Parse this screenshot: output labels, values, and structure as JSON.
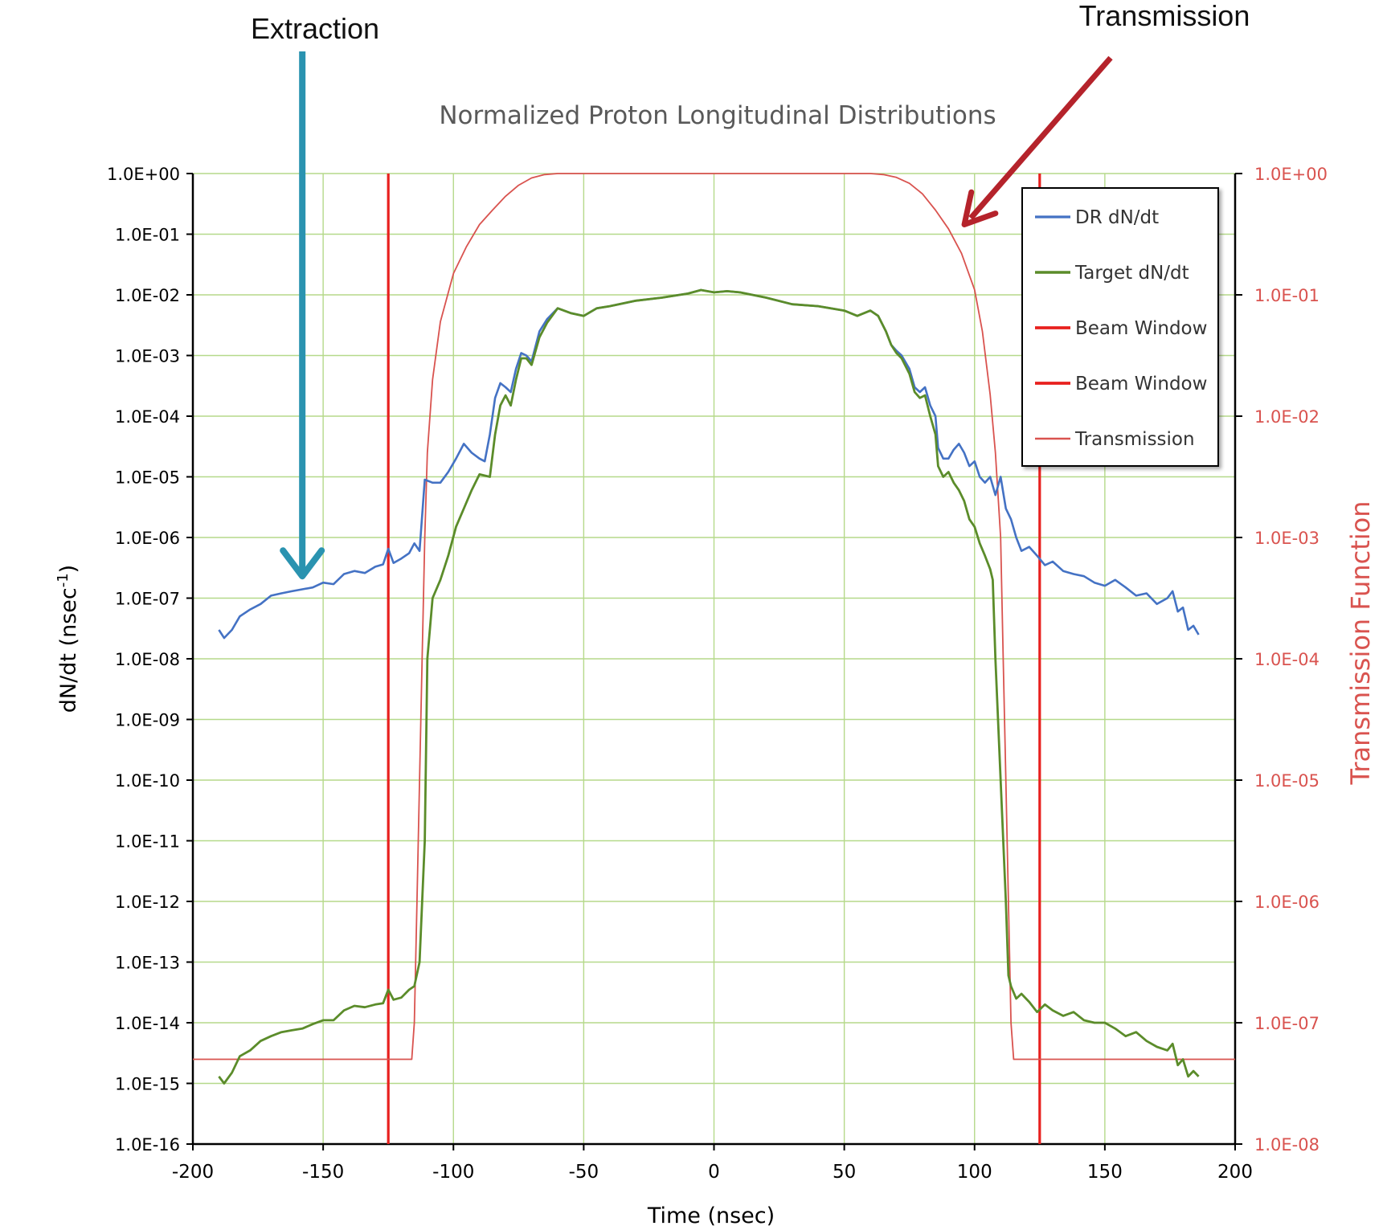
{
  "chart_data": {
    "type": "line",
    "title": "Normalized Proton Longitudinal Distributions",
    "xlabel": "Time (nsec)",
    "ylabel_left": "dN/dt (nsec",
    "ylabel_left_sup": "-1",
    "ylabel_left_close": ")",
    "ylabel_right": "Transmission Function",
    "xlim": [
      -200,
      200
    ],
    "x_ticks": [
      -200,
      -150,
      -100,
      -50,
      0,
      50,
      100,
      150,
      200
    ],
    "y_left_scale": "log",
    "y_left_lim": [
      1e-16,
      1
    ],
    "y_left_ticks": [
      "1.0E+00",
      "1.0E-01",
      "1.0E-02",
      "1.0E-03",
      "1.0E-04",
      "1.0E-05",
      "1.0E-06",
      "1.0E-07",
      "1.0E-08",
      "1.0E-09",
      "1.0E-10",
      "1.0E-11",
      "1.0E-12",
      "1.0E-13",
      "1.0E-14",
      "1.0E-15",
      "1.0E-16"
    ],
    "y_right_scale": "log",
    "y_right_lim": [
      1e-08,
      1
    ],
    "y_right_ticks": [
      "1.0E+00",
      "1.0E-01",
      "1.0E-02",
      "1.0E-03",
      "1.0E-04",
      "1.0E-05",
      "1.0E-06",
      "1.0E-07",
      "1.0E-08"
    ],
    "grid": true,
    "legend_position": "top-right",
    "colors": {
      "dr": "#4472C4",
      "target": "#5B8C2A",
      "beam_window": "#E8201E",
      "transmission": "#D9534F",
      "grid": "#B5D98A",
      "extraction_arrow": "#2A93B0",
      "transmission_arrow": "#B5232B"
    },
    "series": [
      {
        "name": "DR dN/dt",
        "axis": "left",
        "points": [
          [
            -190,
            3e-08
          ],
          [
            -188,
            2.2e-08
          ],
          [
            -185,
            3e-08
          ],
          [
            -182,
            5e-08
          ],
          [
            -178,
            6.5e-08
          ],
          [
            -174,
            8e-08
          ],
          [
            -170,
            1.1e-07
          ],
          [
            -166,
            1.2e-07
          ],
          [
            -162,
            1.3e-07
          ],
          [
            -158,
            1.4e-07
          ],
          [
            -154,
            1.5e-07
          ],
          [
            -150,
            1.8e-07
          ],
          [
            -146,
            1.7e-07
          ],
          [
            -142,
            2.5e-07
          ],
          [
            -138,
            2.8e-07
          ],
          [
            -134,
            2.6e-07
          ],
          [
            -130,
            3.3e-07
          ],
          [
            -127,
            3.6e-07
          ],
          [
            -125,
            6.5e-07
          ],
          [
            -123,
            3.8e-07
          ],
          [
            -120,
            4.5e-07
          ],
          [
            -117,
            5.5e-07
          ],
          [
            -115,
            8e-07
          ],
          [
            -113,
            6e-07
          ],
          [
            -111,
            9e-06
          ],
          [
            -108,
            8e-06
          ],
          [
            -105,
            8e-06
          ],
          [
            -102,
            1.2e-05
          ],
          [
            -99,
            2e-05
          ],
          [
            -96,
            3.5e-05
          ],
          [
            -93,
            2.5e-05
          ],
          [
            -90,
            2e-05
          ],
          [
            -88,
            1.8e-05
          ],
          [
            -86,
            5e-05
          ],
          [
            -84,
            0.0002
          ],
          [
            -82,
            0.00035
          ],
          [
            -80,
            0.0003
          ],
          [
            -78,
            0.00025
          ],
          [
            -76,
            0.0006
          ],
          [
            -74,
            0.0011
          ],
          [
            -72,
            0.001
          ],
          [
            -70,
            0.0008
          ],
          [
            -67,
            0.0025
          ],
          [
            -64,
            0.004
          ],
          [
            -60,
            0.006
          ],
          [
            -55,
            0.005
          ],
          [
            -50,
            0.0045
          ],
          [
            -45,
            0.006
          ],
          [
            -40,
            0.0065
          ],
          [
            -30,
            0.008
          ],
          [
            -20,
            0.009
          ],
          [
            -10,
            0.0105
          ],
          [
            -5,
            0.012
          ],
          [
            0,
            0.011
          ],
          [
            5,
            0.0115
          ],
          [
            10,
            0.011
          ],
          [
            20,
            0.009
          ],
          [
            30,
            0.007
          ],
          [
            40,
            0.0065
          ],
          [
            50,
            0.0055
          ],
          [
            55,
            0.0045
          ],
          [
            60,
            0.0055
          ],
          [
            63,
            0.0045
          ],
          [
            66,
            0.0025
          ],
          [
            68,
            0.0015
          ],
          [
            70,
            0.0012
          ],
          [
            72,
            0.001
          ],
          [
            75,
            0.0006
          ],
          [
            77,
            0.0003
          ],
          [
            79,
            0.00025
          ],
          [
            81,
            0.0003
          ],
          [
            83,
            0.00015
          ],
          [
            85,
            0.0001
          ],
          [
            86,
            3e-05
          ],
          [
            88,
            2e-05
          ],
          [
            90,
            2e-05
          ],
          [
            92,
            2.8e-05
          ],
          [
            94,
            3.5e-05
          ],
          [
            96,
            2.5e-05
          ],
          [
            98,
            1.5e-05
          ],
          [
            100,
            1.8e-05
          ],
          [
            102,
            1e-05
          ],
          [
            104,
            8e-06
          ],
          [
            106,
            1e-05
          ],
          [
            108,
            5e-06
          ],
          [
            110,
            1e-05
          ],
          [
            112,
            3e-06
          ],
          [
            114,
            2e-06
          ],
          [
            116,
            1e-06
          ],
          [
            118,
            6e-07
          ],
          [
            121,
            7e-07
          ],
          [
            124,
            5e-07
          ],
          [
            127,
            3.5e-07
          ],
          [
            130,
            4e-07
          ],
          [
            134,
            2.8e-07
          ],
          [
            138,
            2.5e-07
          ],
          [
            142,
            2.3e-07
          ],
          [
            146,
            1.8e-07
          ],
          [
            150,
            1.6e-07
          ],
          [
            154,
            2e-07
          ],
          [
            158,
            1.5e-07
          ],
          [
            162,
            1.1e-07
          ],
          [
            166,
            1.2e-07
          ],
          [
            170,
            8e-08
          ],
          [
            174,
            1e-07
          ],
          [
            176,
            1.3e-07
          ],
          [
            178,
            6e-08
          ],
          [
            180,
            7e-08
          ],
          [
            182,
            3e-08
          ],
          [
            184,
            3.5e-08
          ],
          [
            186,
            2.5e-08
          ]
        ]
      },
      {
        "name": "Target dN/dt",
        "axis": "left",
        "points": [
          [
            -190,
            1.3e-15
          ],
          [
            -188,
            1e-15
          ],
          [
            -185,
            1.5e-15
          ],
          [
            -182,
            2.8e-15
          ],
          [
            -178,
            3.5e-15
          ],
          [
            -174,
            5e-15
          ],
          [
            -170,
            6e-15
          ],
          [
            -166,
            7e-15
          ],
          [
            -162,
            7.5e-15
          ],
          [
            -158,
            8e-15
          ],
          [
            -154,
            9.5e-15
          ],
          [
            -150,
            1.1e-14
          ],
          [
            -146,
            1.1e-14
          ],
          [
            -142,
            1.6e-14
          ],
          [
            -138,
            1.9e-14
          ],
          [
            -134,
            1.8e-14
          ],
          [
            -130,
            2e-14
          ],
          [
            -127,
            2.1e-14
          ],
          [
            -125,
            3.5e-14
          ],
          [
            -123,
            2.4e-14
          ],
          [
            -120,
            2.6e-14
          ],
          [
            -117,
            3.5e-14
          ],
          [
            -115,
            4e-14
          ],
          [
            -113,
            1e-13
          ],
          [
            -111,
            1e-11
          ],
          [
            -110,
            1e-08
          ],
          [
            -108,
            1e-07
          ],
          [
            -105,
            2e-07
          ],
          [
            -102,
            5e-07
          ],
          [
            -99,
            1.5e-06
          ],
          [
            -96,
            3e-06
          ],
          [
            -93,
            6e-06
          ],
          [
            -90,
            1.1e-05
          ],
          [
            -86,
            1e-05
          ],
          [
            -84,
            5e-05
          ],
          [
            -82,
            0.00015
          ],
          [
            -80,
            0.00022
          ],
          [
            -78,
            0.00015
          ],
          [
            -76,
            0.0004
          ],
          [
            -74,
            0.0009
          ],
          [
            -72,
            0.0009
          ],
          [
            -70,
            0.0007
          ],
          [
            -67,
            0.002
          ],
          [
            -64,
            0.0035
          ],
          [
            -60,
            0.006
          ],
          [
            -55,
            0.005
          ],
          [
            -50,
            0.0045
          ],
          [
            -45,
            0.006
          ],
          [
            -40,
            0.0065
          ],
          [
            -30,
            0.008
          ],
          [
            -20,
            0.009
          ],
          [
            -10,
            0.0105
          ],
          [
            -5,
            0.012
          ],
          [
            0,
            0.011
          ],
          [
            5,
            0.0115
          ],
          [
            10,
            0.011
          ],
          [
            20,
            0.009
          ],
          [
            30,
            0.007
          ],
          [
            40,
            0.0065
          ],
          [
            50,
            0.0055
          ],
          [
            55,
            0.0045
          ],
          [
            60,
            0.0055
          ],
          [
            63,
            0.0045
          ],
          [
            66,
            0.0025
          ],
          [
            68,
            0.0015
          ],
          [
            70,
            0.0011
          ],
          [
            72,
            0.0009
          ],
          [
            75,
            0.0005
          ],
          [
            77,
            0.00025
          ],
          [
            79,
            0.0002
          ],
          [
            81,
            0.00022
          ],
          [
            83,
            0.0001
          ],
          [
            85,
            5e-05
          ],
          [
            86,
            1.5e-05
          ],
          [
            88,
            1e-05
          ],
          [
            90,
            1.2e-05
          ],
          [
            92,
            8e-06
          ],
          [
            94,
            6e-06
          ],
          [
            96,
            4e-06
          ],
          [
            98,
            2e-06
          ],
          [
            100,
            1.5e-06
          ],
          [
            102,
            8e-07
          ],
          [
            104,
            5e-07
          ],
          [
            106,
            3e-07
          ],
          [
            107,
            2e-07
          ],
          [
            108,
            1e-08
          ],
          [
            110,
            1e-10
          ],
          [
            112,
            1e-12
          ],
          [
            113,
            6e-14
          ],
          [
            114,
            4e-14
          ],
          [
            116,
            2.5e-14
          ],
          [
            118,
            3e-14
          ],
          [
            121,
            2.2e-14
          ],
          [
            124,
            1.5e-14
          ],
          [
            127,
            2e-14
          ],
          [
            130,
            1.6e-14
          ],
          [
            134,
            1.3e-14
          ],
          [
            138,
            1.5e-14
          ],
          [
            142,
            1.1e-14
          ],
          [
            146,
            1e-14
          ],
          [
            150,
            1e-14
          ],
          [
            154,
            8e-15
          ],
          [
            158,
            6e-15
          ],
          [
            162,
            7e-15
          ],
          [
            166,
            5e-15
          ],
          [
            170,
            4e-15
          ],
          [
            174,
            3.5e-15
          ],
          [
            176,
            4.5e-15
          ],
          [
            178,
            2e-15
          ],
          [
            180,
            2.5e-15
          ],
          [
            182,
            1.3e-15
          ],
          [
            184,
            1.6e-15
          ],
          [
            186,
            1.3e-15
          ]
        ]
      },
      {
        "name": "Beam Window",
        "axis": "left",
        "points": [
          [
            -125,
            1e-16
          ],
          [
            -125,
            1
          ]
        ]
      },
      {
        "name": "Beam Window",
        "axis": "left",
        "points": [
          [
            125,
            1e-16
          ],
          [
            125,
            1
          ]
        ]
      },
      {
        "name": "Transmission",
        "axis": "right",
        "points": [
          [
            -200,
            5e-08
          ],
          [
            -116,
            5e-08
          ],
          [
            -115,
            1e-07
          ],
          [
            -114,
            1e-06
          ],
          [
            -113,
            1e-05
          ],
          [
            -112,
            0.0001
          ],
          [
            -111,
            0.001
          ],
          [
            -110,
            0.005
          ],
          [
            -108,
            0.02
          ],
          [
            -105,
            0.06
          ],
          [
            -100,
            0.15
          ],
          [
            -95,
            0.25
          ],
          [
            -90,
            0.38
          ],
          [
            -85,
            0.5
          ],
          [
            -80,
            0.65
          ],
          [
            -75,
            0.8
          ],
          [
            -70,
            0.92
          ],
          [
            -65,
            0.98
          ],
          [
            -60,
            1
          ],
          [
            60,
            1
          ],
          [
            65,
            0.98
          ],
          [
            70,
            0.93
          ],
          [
            75,
            0.83
          ],
          [
            80,
            0.68
          ],
          [
            85,
            0.5
          ],
          [
            90,
            0.35
          ],
          [
            95,
            0.22
          ],
          [
            100,
            0.11
          ],
          [
            103,
            0.05
          ],
          [
            106,
            0.015
          ],
          [
            108,
            0.005
          ],
          [
            110,
            0.001
          ],
          [
            111,
            0.0001
          ],
          [
            112,
            1e-05
          ],
          [
            113,
            1e-06
          ],
          [
            114,
            1e-07
          ],
          [
            115,
            5e-08
          ],
          [
            200,
            5e-08
          ]
        ]
      }
    ],
    "annotations": [
      {
        "text": "Extraction",
        "points_to": [
          -158,
          1.8e-07
        ]
      },
      {
        "text": "Transmission",
        "points_to": [
          93,
          0.38
        ]
      }
    ]
  }
}
